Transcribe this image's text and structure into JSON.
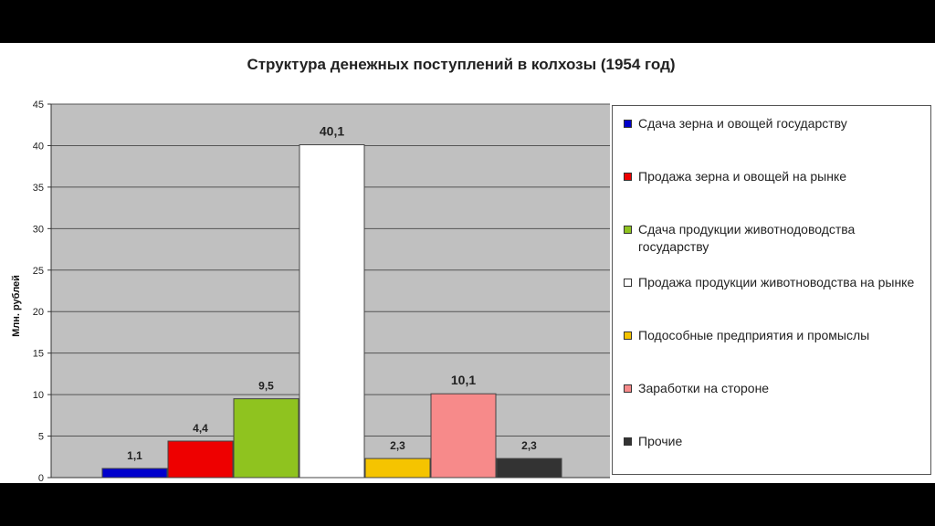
{
  "chart_data": {
    "type": "bar",
    "title": "Структура денежных поступлений в колхозы (1954 год)",
    "xlabel": "",
    "ylabel": "Млн. рублей",
    "ylim": [
      0,
      45
    ],
    "yticks": [
      0,
      5,
      10,
      15,
      20,
      25,
      30,
      35,
      40,
      45
    ],
    "grid": true,
    "legend_position": "right",
    "series": [
      {
        "name": "Сдача зерна и овощей государству",
        "value": 1.1,
        "label": "1,1",
        "color": "#0000cc"
      },
      {
        "name": "Продажа зерна и овощей на рынке",
        "value": 4.4,
        "label": "4,4",
        "color": "#ee0000"
      },
      {
        "name": "Сдача продукции животнодоводства государству",
        "value": 9.5,
        "label": "9,5",
        "color": "#8fc31f"
      },
      {
        "name": "Продажа продукции животноводства на рынке",
        "value": 40.1,
        "label": "40,1",
        "color": "#ffffff"
      },
      {
        "name": "Подособные предприятия и промыслы",
        "value": 2.3,
        "label": "2,3",
        "color": "#f5c400"
      },
      {
        "name": "Заработки на стороне",
        "value": 10.1,
        "label": "10,1",
        "color": "#f78a8a"
      },
      {
        "name": "Прочие",
        "value": 2.3,
        "label": "2,3",
        "color": "#333333"
      }
    ],
    "plot_background": "#c0c0c0"
  }
}
